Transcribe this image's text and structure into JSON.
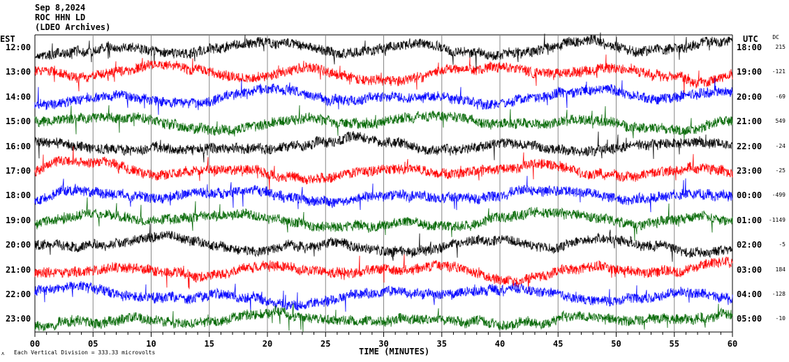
{
  "header": {
    "date": "Sep 8,2024",
    "station": "ROC HHN LD",
    "network": "(LDEO Archives)"
  },
  "chart_data": {
    "type": "line",
    "title": "Sep 8,2024 ROC HHN LD",
    "xlabel": "TIME (MINUTES)",
    "xlim": [
      0,
      60
    ],
    "x_ticks": [
      "00",
      "05",
      "10",
      "15",
      "20",
      "25",
      "30",
      "35",
      "40",
      "45",
      "50",
      "55",
      "60"
    ],
    "left_axis_title": "EST",
    "right_axis_title": "UTC",
    "dc_title": "DC",
    "rows": [
      {
        "est": "12:00",
        "utc": "18:00",
        "dc": "215",
        "color": "#000000"
      },
      {
        "est": "13:00",
        "utc": "19:00",
        "dc": "-121",
        "color": "#ff0000"
      },
      {
        "est": "14:00",
        "utc": "20:00",
        "dc": "-69",
        "color": "#0000ff"
      },
      {
        "est": "15:00",
        "utc": "21:00",
        "dc": "549",
        "color": "#006600"
      },
      {
        "est": "16:00",
        "utc": "22:00",
        "dc": "-24",
        "color": "#000000"
      },
      {
        "est": "17:00",
        "utc": "23:00",
        "dc": "-25",
        "color": "#ff0000"
      },
      {
        "est": "18:00",
        "utc": "00:00",
        "dc": "-499",
        "color": "#0000ff"
      },
      {
        "est": "19:00",
        "utc": "01:00",
        "dc": "-1149",
        "color": "#006600"
      },
      {
        "est": "20:00",
        "utc": "02:00",
        "dc": "-5",
        "color": "#000000"
      },
      {
        "est": "21:00",
        "utc": "03:00",
        "dc": "184",
        "color": "#ff0000"
      },
      {
        "est": "22:00",
        "utc": "04:00",
        "dc": "-128",
        "color": "#0000ff"
      },
      {
        "est": "23:00",
        "utc": "05:00",
        "dc": "-10",
        "color": "#006600"
      }
    ],
    "scale_note": "Each Vertical Division =  333.33 microvolts"
  }
}
